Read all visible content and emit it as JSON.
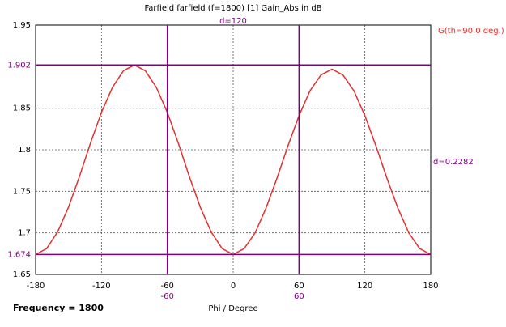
{
  "chart_data": {
    "type": "line",
    "title": "Farfield farfield (f=1800) [1] Gain_Abs in dB",
    "x_label": "Phi / Degree",
    "x": [
      -180,
      -170,
      -160,
      -150,
      -140,
      -130,
      -120,
      -110,
      -100,
      -90,
      -80,
      -70,
      -60,
      -50,
      -40,
      -30,
      -20,
      -10,
      0,
      10,
      20,
      30,
      40,
      50,
      60,
      70,
      80,
      90,
      100,
      110,
      120,
      130,
      140,
      150,
      160,
      170,
      180
    ],
    "series": [
      {
        "name": "G(th=90.0 deg.)",
        "color": "#e03030",
        "values": [
          1.674,
          1.681,
          1.701,
          1.731,
          1.768,
          1.808,
          1.845,
          1.875,
          1.895,
          1.902,
          1.895,
          1.875,
          1.845,
          1.808,
          1.768,
          1.731,
          1.701,
          1.681,
          1.674,
          1.681,
          1.7,
          1.73,
          1.766,
          1.805,
          1.841,
          1.871,
          1.89,
          1.897,
          1.89,
          1.871,
          1.841,
          1.805,
          1.766,
          1.73,
          1.7,
          1.681,
          1.674
        ]
      }
    ],
    "xlim": [
      -180,
      180
    ],
    "ylim": [
      1.65,
      1.95
    ],
    "xticks": [
      -180,
      -120,
      -60,
      0,
      60,
      120,
      180
    ],
    "yticks": [
      1.65,
      1.7,
      1.75,
      1.8,
      1.85,
      1.95
    ],
    "grid": true,
    "markers": {
      "color": "#800080",
      "vertical": [
        -60,
        60
      ],
      "horizontal": [
        1.902,
        1.674
      ]
    },
    "annotations": {
      "x_delta": "d=120",
      "y_delta": "d=0.2282"
    },
    "footer": "Frequency = 1800"
  }
}
